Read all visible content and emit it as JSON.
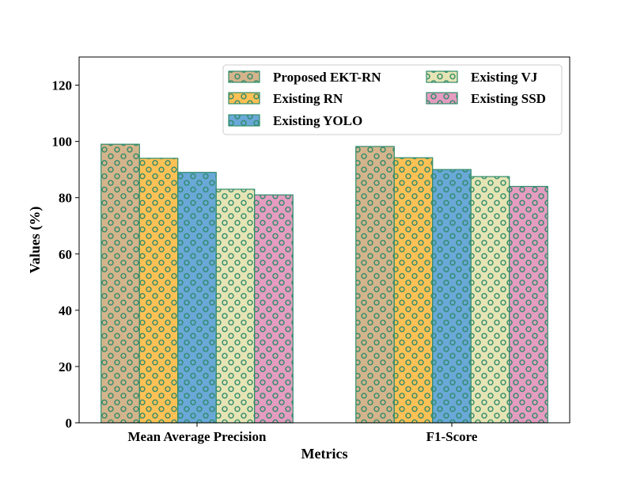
{
  "chart_data": {
    "type": "bar",
    "title": "",
    "xlabel": "Metrics",
    "ylabel": "Values (%)",
    "ylim": [
      0,
      130
    ],
    "yticks": [
      0,
      20,
      40,
      60,
      80,
      100,
      120
    ],
    "categories": [
      "Mean Average Precision",
      "F1-Score"
    ],
    "series": [
      {
        "name": "Proposed EKT-RN",
        "color": "#d4b48c",
        "values": [
          99,
          98.2
        ]
      },
      {
        "name": "Existing RN",
        "color": "#ffc155",
        "values": [
          94,
          94.2
        ]
      },
      {
        "name": "Existing YOLO",
        "color": "#6aa8d8",
        "values": [
          89,
          90
        ]
      },
      {
        "name": "Existing VJ",
        "color": "#e6e4b4",
        "values": [
          83,
          87.5
        ]
      },
      {
        "name": "Existing SSD",
        "color": "#e59cc0",
        "values": [
          81,
          84
        ]
      }
    ],
    "hatch": "circles",
    "hatch_color": "#2e8b6a",
    "edge_color": "#2e8b6a",
    "grid": false,
    "legend": {
      "placement": "upper-right",
      "columns": 2
    }
  }
}
